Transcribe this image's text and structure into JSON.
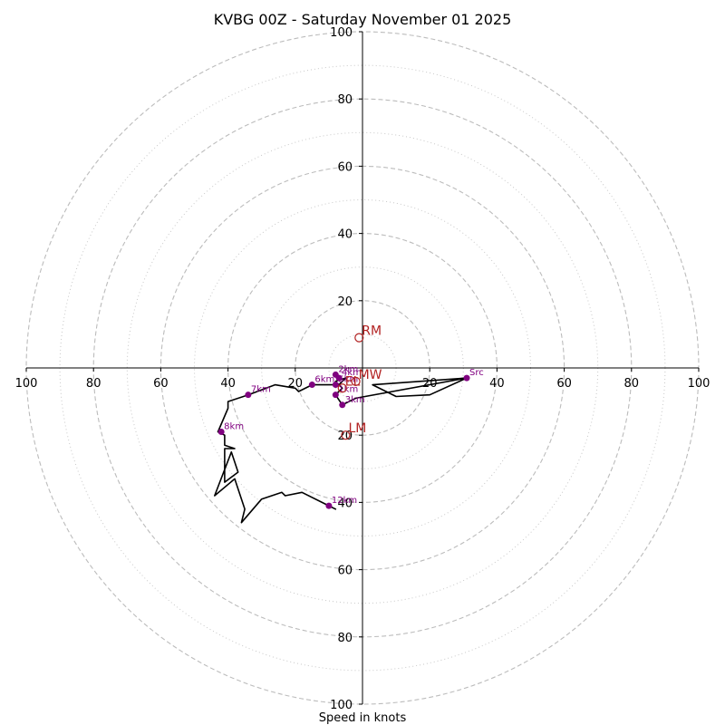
{
  "chart_data": {
    "type": "hodograph",
    "title": "KVBG 00Z - Saturday November 01 2025",
    "xlabel": "Speed in knots",
    "range": [
      -100,
      100
    ],
    "ring_major": [
      20,
      40,
      60,
      80,
      100
    ],
    "ring_minor": [
      10,
      30,
      50,
      70,
      90
    ],
    "ticks_x": [
      {
        "label": "100",
        "v": -100
      },
      {
        "label": "80",
        "v": -80
      },
      {
        "label": "60",
        "v": -60
      },
      {
        "label": "40",
        "v": -40
      },
      {
        "label": "20",
        "v": -20
      },
      {
        "label": "20",
        "v": 20
      },
      {
        "label": "40",
        "v": 40
      },
      {
        "label": "60",
        "v": 60
      },
      {
        "label": "80",
        "v": 80
      },
      {
        "label": "100",
        "v": 100
      }
    ],
    "ticks_y": [
      {
        "label": "100",
        "v": 100
      },
      {
        "label": "80",
        "v": 80
      },
      {
        "label": "60",
        "v": 60
      },
      {
        "label": "40",
        "v": 40
      },
      {
        "label": "20",
        "v": 20
      },
      {
        "label": "20",
        "v": -20
      },
      {
        "label": "40",
        "v": -40
      },
      {
        "label": "60",
        "v": -60
      },
      {
        "label": "80",
        "v": -80
      },
      {
        "label": "100",
        "v": -100
      }
    ],
    "trace": [
      [
        31,
        -3
      ],
      [
        3,
        -5
      ],
      [
        10,
        -8.5
      ],
      [
        20,
        -8
      ],
      [
        31,
        -3
      ],
      [
        -2,
        -9
      ],
      [
        -6,
        -11
      ],
      [
        -8,
        -8
      ],
      [
        -6,
        -6
      ],
      [
        -8,
        -4
      ],
      [
        -5,
        -3
      ],
      [
        -7,
        -5
      ],
      [
        -15,
        -5
      ],
      [
        -19,
        -7
      ],
      [
        -20,
        -6
      ],
      [
        -26,
        -5
      ],
      [
        -34,
        -8
      ],
      [
        -40,
        -10
      ],
      [
        -40,
        -12
      ],
      [
        -43,
        -19
      ],
      [
        -41,
        -20
      ],
      [
        -41,
        -23
      ],
      [
        -38,
        -24
      ],
      [
        -41,
        -24
      ],
      [
        -41,
        -34
      ],
      [
        -37,
        -31
      ],
      [
        -39,
        -25
      ],
      [
        -44,
        -38
      ],
      [
        -38,
        -33
      ],
      [
        -35,
        -42
      ],
      [
        -36,
        -46
      ],
      [
        -30,
        -39
      ],
      [
        -24,
        -37
      ],
      [
        -23,
        -38
      ],
      [
        -18,
        -37
      ],
      [
        -10,
        -41
      ],
      [
        -8,
        -42
      ],
      [
        -10,
        -41
      ]
    ],
    "height_markers": [
      {
        "label": "Src",
        "u": 31,
        "v": -3
      },
      {
        "label": "1km",
        "u": -8,
        "v": -8
      },
      {
        "label": "2km",
        "u": -8,
        "v": -2
      },
      {
        "label": "3km",
        "u": -6,
        "v": -11
      },
      {
        "label": "4km",
        "u": -7,
        "v": -3
      },
      {
        "label": "5km",
        "u": -8,
        "v": -5
      },
      {
        "label": "6km",
        "u": -15,
        "v": -5
      },
      {
        "label": "7km",
        "u": -34,
        "v": -8
      },
      {
        "label": "8km",
        "u": -42,
        "v": -19
      },
      {
        "label": "12km",
        "u": -10,
        "v": -41
      }
    ],
    "motion_markers": [
      {
        "label": "RM",
        "u": -1,
        "v": 9
      },
      {
        "label": "LM",
        "u": -5,
        "v": -20
      },
      {
        "label": "MW",
        "u": -2,
        "v": -4
      },
      {
        "label": "EL",
        "u": -6,
        "v": -6
      }
    ]
  }
}
